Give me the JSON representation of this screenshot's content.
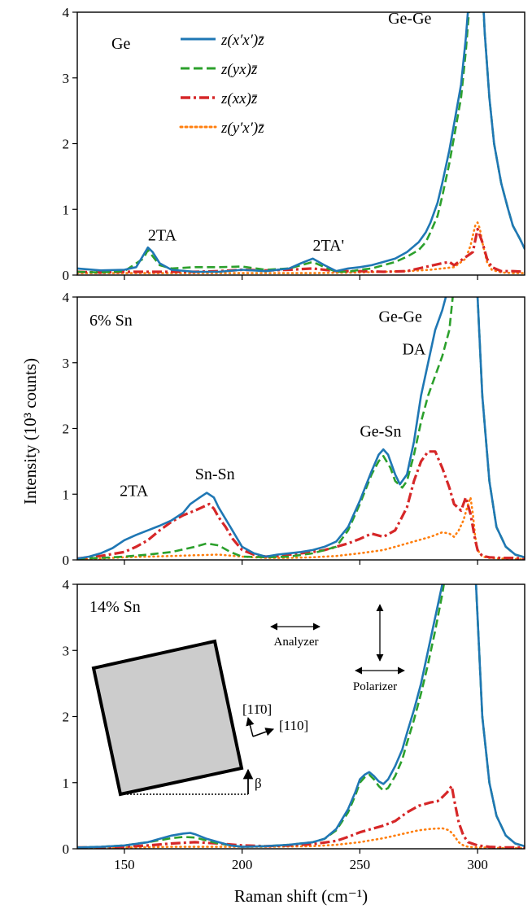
{
  "colors": {
    "x_prime_x_prime": "#1f77b4",
    "yx": "#2ca02c",
    "xx": "#d62728",
    "y_prime_x_prime": "#ff7f0e",
    "inset_square": "#cccccc"
  },
  "shared": {
    "xlabel": "Raman shift (cm⁻¹)",
    "ylabel": "Intensity (10³ counts)",
    "xlim": [
      130,
      320
    ],
    "ylim": [
      0,
      4
    ],
    "x_ticks": [
      150,
      200,
      250,
      300
    ],
    "y_ticks": [
      0,
      1,
      2,
      3,
      4
    ]
  },
  "legend": {
    "placement": "top-center of top panel",
    "entries": [
      {
        "key": "x_prime_x_prime",
        "label": "z(x′x′)z̄",
        "style": "solid"
      },
      {
        "key": "yx",
        "label": "z(yx)z̄",
        "style": "dashed"
      },
      {
        "key": "xx",
        "label": "z(xx)z̄",
        "style": "dashdot"
      },
      {
        "key": "y_prime_x_prime",
        "label": "z(y′x′)z̄",
        "style": "dotted"
      }
    ]
  },
  "inset": {
    "analyzer_label": "Analyzer",
    "polarizer_label": "Polarizer",
    "dir_1_label": "[11̄0]",
    "dir_2_label": "[110]",
    "angle_label": "β"
  },
  "chart_data": [
    {
      "type": "line",
      "panel_label": "Ge",
      "annotations": [
        {
          "text": "2TA",
          "x": 160,
          "y": 0.45
        },
        {
          "text": "2TA'",
          "x": 230,
          "y": 0.3
        },
        {
          "text": "Ge-Ge",
          "x": 262,
          "y": 3.75
        }
      ],
      "series": [
        {
          "key": "x_prime_x_prime",
          "x": [
            130,
            140,
            150,
            155,
            158,
            160,
            162,
            165,
            170,
            180,
            190,
            200,
            210,
            220,
            225,
            230,
            235,
            240,
            245,
            250,
            255,
            260,
            265,
            270,
            275,
            278,
            280,
            283,
            285,
            288,
            290,
            293,
            295,
            297,
            298,
            299,
            300,
            301,
            302,
            303,
            305,
            307,
            310,
            313,
            315,
            318,
            320
          ],
          "y": [
            0.1,
            0.07,
            0.08,
            0.12,
            0.3,
            0.42,
            0.35,
            0.18,
            0.08,
            0.05,
            0.05,
            0.08,
            0.06,
            0.1,
            0.18,
            0.25,
            0.15,
            0.06,
            0.1,
            0.12,
            0.15,
            0.2,
            0.25,
            0.35,
            0.5,
            0.65,
            0.8,
            1.1,
            1.4,
            1.9,
            2.3,
            2.9,
            3.6,
            4.5,
            5.5,
            6.0,
            6.0,
            5.5,
            4.5,
            3.7,
            2.7,
            2.0,
            1.4,
            1.0,
            0.75,
            0.55,
            0.4
          ]
        },
        {
          "key": "yx",
          "x": [
            130,
            140,
            150,
            158,
            160,
            165,
            170,
            180,
            190,
            200,
            210,
            220,
            225,
            230,
            235,
            240,
            245,
            250,
            255,
            260,
            265,
            270,
            275,
            278,
            280,
            283,
            285,
            288,
            290,
            293,
            295,
            297,
            298,
            299,
            300,
            301,
            302,
            303,
            305,
            307,
            310,
            313,
            315,
            318,
            320
          ],
          "y": [
            0.05,
            0.04,
            0.06,
            0.25,
            0.38,
            0.15,
            0.1,
            0.12,
            0.12,
            0.13,
            0.08,
            0.1,
            0.15,
            0.2,
            0.12,
            0.05,
            0.05,
            0.08,
            0.1,
            0.15,
            0.2,
            0.28,
            0.38,
            0.5,
            0.65,
            0.9,
            1.2,
            1.7,
            2.1,
            2.7,
            3.4,
            4.3,
            5.2,
            6.0,
            6.0,
            5.4,
            4.4,
            3.7,
            2.7,
            2.0,
            1.4,
            1.0,
            0.75,
            0.55,
            0.4
          ]
        },
        {
          "key": "xx",
          "x": [
            130,
            140,
            150,
            160,
            170,
            180,
            190,
            200,
            210,
            220,
            230,
            240,
            250,
            260,
            270,
            275,
            280,
            285,
            288,
            290,
            292,
            294,
            296,
            298,
            300,
            302,
            304,
            306,
            310,
            315,
            320
          ],
          "y": [
            0.05,
            0.04,
            0.05,
            0.05,
            0.05,
            0.05,
            0.06,
            0.08,
            0.07,
            0.08,
            0.1,
            0.06,
            0.06,
            0.05,
            0.06,
            0.1,
            0.14,
            0.18,
            0.2,
            0.15,
            0.2,
            0.25,
            0.3,
            0.35,
            0.7,
            0.5,
            0.25,
            0.12,
            0.06,
            0.06,
            0.05
          ]
        },
        {
          "key": "y_prime_x_prime",
          "x": [
            130,
            150,
            170,
            190,
            210,
            230,
            250,
            260,
            270,
            280,
            290,
            295,
            297,
            298,
            299,
            300,
            301,
            302,
            304,
            306,
            310,
            315,
            320
          ],
          "y": [
            0.03,
            0.03,
            0.03,
            0.03,
            0.03,
            0.03,
            0.04,
            0.05,
            0.06,
            0.08,
            0.12,
            0.25,
            0.45,
            0.6,
            0.75,
            0.8,
            0.7,
            0.5,
            0.2,
            0.08,
            0.04,
            0.03,
            0.03
          ]
        }
      ]
    },
    {
      "type": "line",
      "panel_label": "6% Sn",
      "annotations": [
        {
          "text": "2TA",
          "x": 148,
          "y": 0.9
        },
        {
          "text": "Sn-Sn",
          "x": 180,
          "y": 1.15
        },
        {
          "text": "Ge-Sn",
          "x": 250,
          "y": 1.8
        },
        {
          "text": "DA",
          "x": 268,
          "y": 3.05
        },
        {
          "text": "Ge-Ge",
          "x": 258,
          "y": 3.55
        }
      ],
      "series": [
        {
          "key": "x_prime_x_prime",
          "x": [
            130,
            135,
            140,
            145,
            150,
            155,
            160,
            165,
            170,
            175,
            178,
            182,
            185,
            188,
            190,
            195,
            200,
            205,
            210,
            215,
            220,
            225,
            230,
            235,
            240,
            245,
            250,
            255,
            258,
            260,
            262,
            265,
            267,
            270,
            273,
            276,
            279,
            282,
            285,
            288,
            290,
            292,
            294,
            296,
            298,
            300,
            302,
            305,
            308,
            312,
            316,
            320
          ],
          "y": [
            0.02,
            0.05,
            0.1,
            0.18,
            0.3,
            0.38,
            0.45,
            0.52,
            0.6,
            0.72,
            0.85,
            0.95,
            1.02,
            0.95,
            0.8,
            0.5,
            0.2,
            0.1,
            0.05,
            0.08,
            0.1,
            0.12,
            0.15,
            0.2,
            0.28,
            0.5,
            0.9,
            1.35,
            1.6,
            1.68,
            1.6,
            1.3,
            1.15,
            1.3,
            1.8,
            2.5,
            3.0,
            3.5,
            3.8,
            4.2,
            5.0,
            6.0,
            6.0,
            6.0,
            5.0,
            4.0,
            2.5,
            1.2,
            0.5,
            0.2,
            0.08,
            0.04
          ]
        },
        {
          "key": "yx",
          "x": [
            130,
            140,
            150,
            160,
            170,
            175,
            180,
            185,
            190,
            195,
            200,
            210,
            220,
            230,
            240,
            245,
            250,
            255,
            258,
            260,
            263,
            265,
            268,
            270,
            273,
            276,
            279,
            282,
            285,
            288,
            290,
            292,
            294,
            296,
            298,
            300,
            302,
            305,
            308,
            312,
            316,
            320
          ],
          "y": [
            0.02,
            0.03,
            0.05,
            0.08,
            0.12,
            0.16,
            0.2,
            0.25,
            0.22,
            0.12,
            0.05,
            0.04,
            0.05,
            0.1,
            0.2,
            0.45,
            0.85,
            1.3,
            1.5,
            1.58,
            1.4,
            1.2,
            1.1,
            1.2,
            1.6,
            2.1,
            2.5,
            2.8,
            3.1,
            3.5,
            4.2,
            5.5,
            6.0,
            6.0,
            5.5,
            4.0,
            2.5,
            1.2,
            0.5,
            0.2,
            0.08,
            0.04
          ]
        },
        {
          "key": "xx",
          "x": [
            130,
            140,
            150,
            155,
            160,
            165,
            170,
            175,
            180,
            183,
            186,
            188,
            190,
            193,
            196,
            200,
            205,
            210,
            215,
            220,
            225,
            230,
            235,
            240,
            245,
            250,
            255,
            260,
            265,
            270,
            273,
            276,
            279,
            282,
            285,
            288,
            290,
            293,
            295,
            297,
            299,
            300,
            302,
            305,
            310,
            315,
            320
          ],
          "y": [
            0.02,
            0.06,
            0.12,
            0.2,
            0.3,
            0.45,
            0.58,
            0.68,
            0.75,
            0.8,
            0.85,
            0.78,
            0.65,
            0.5,
            0.32,
            0.15,
            0.08,
            0.05,
            0.06,
            0.08,
            0.1,
            0.12,
            0.15,
            0.2,
            0.25,
            0.32,
            0.4,
            0.35,
            0.45,
            0.8,
            1.2,
            1.5,
            1.65,
            1.65,
            1.4,
            1.1,
            0.85,
            0.75,
            0.95,
            0.7,
            0.3,
            0.15,
            0.06,
            0.04,
            0.03,
            0.03,
            0.02
          ]
        },
        {
          "key": "y_prime_x_prime",
          "x": [
            130,
            140,
            150,
            160,
            170,
            180,
            190,
            200,
            210,
            220,
            230,
            240,
            250,
            260,
            265,
            270,
            275,
            280,
            285,
            288,
            290,
            292,
            294,
            296,
            297,
            298,
            299,
            300,
            302,
            305,
            310,
            320
          ],
          "y": [
            0.01,
            0.02,
            0.04,
            0.05,
            0.06,
            0.07,
            0.08,
            0.05,
            0.03,
            0.03,
            0.04,
            0.06,
            0.1,
            0.15,
            0.2,
            0.25,
            0.3,
            0.35,
            0.42,
            0.4,
            0.35,
            0.45,
            0.6,
            0.85,
            0.95,
            0.7,
            0.35,
            0.15,
            0.05,
            0.03,
            0.02,
            0.01
          ]
        }
      ]
    },
    {
      "type": "line",
      "panel_label": "14% Sn",
      "annotations": [],
      "series": [
        {
          "key": "x_prime_x_prime",
          "x": [
            130,
            140,
            150,
            160,
            165,
            170,
            175,
            178,
            180,
            185,
            190,
            195,
            200,
            210,
            220,
            230,
            235,
            240,
            245,
            248,
            250,
            252,
            254,
            256,
            258,
            260,
            262,
            265,
            268,
            270,
            273,
            276,
            279,
            282,
            285,
            287,
            289,
            291,
            293,
            294,
            295,
            296,
            297,
            298,
            300,
            302,
            305,
            308,
            312,
            316,
            320
          ],
          "y": [
            0.02,
            0.03,
            0.05,
            0.1,
            0.15,
            0.2,
            0.23,
            0.24,
            0.22,
            0.15,
            0.1,
            0.05,
            0.03,
            0.04,
            0.06,
            0.1,
            0.15,
            0.3,
            0.6,
            0.85,
            1.05,
            1.12,
            1.16,
            1.1,
            1.02,
            0.98,
            1.05,
            1.25,
            1.5,
            1.75,
            2.1,
            2.5,
            3.0,
            3.5,
            4.0,
            4.5,
            5.5,
            6.0,
            6.0,
            6.0,
            6.0,
            6.0,
            6.0,
            5.5,
            3.5,
            2.0,
            1.0,
            0.5,
            0.2,
            0.08,
            0.04
          ]
        },
        {
          "key": "yx",
          "x": [
            130,
            140,
            150,
            160,
            170,
            175,
            180,
            190,
            200,
            210,
            220,
            230,
            235,
            240,
            245,
            248,
            250,
            252,
            254,
            256,
            258,
            260,
            262,
            265,
            268,
            270,
            273,
            276,
            279,
            282,
            285,
            287,
            289,
            291,
            293,
            294,
            295,
            296,
            297,
            298,
            300,
            302,
            305,
            308,
            312,
            316,
            320
          ],
          "y": [
            0.02,
            0.03,
            0.05,
            0.1,
            0.16,
            0.18,
            0.17,
            0.08,
            0.03,
            0.04,
            0.06,
            0.1,
            0.15,
            0.28,
            0.55,
            0.8,
            1.0,
            1.08,
            1.12,
            1.05,
            0.95,
            0.88,
            0.92,
            1.1,
            1.35,
            1.6,
            1.95,
            2.35,
            2.8,
            3.3,
            3.85,
            4.3,
            5.2,
            6.0,
            6.0,
            6.0,
            6.0,
            6.0,
            6.0,
            5.5,
            3.5,
            2.0,
            1.0,
            0.5,
            0.2,
            0.08,
            0.04
          ]
        },
        {
          "key": "xx",
          "x": [
            130,
            140,
            150,
            160,
            170,
            180,
            190,
            200,
            210,
            220,
            230,
            240,
            245,
            250,
            255,
            260,
            265,
            270,
            275,
            280,
            283,
            285,
            287,
            289,
            290,
            292,
            294,
            296,
            300,
            305,
            310,
            320
          ],
          "y": [
            0.02,
            0.02,
            0.03,
            0.05,
            0.08,
            0.1,
            0.08,
            0.05,
            0.04,
            0.05,
            0.07,
            0.12,
            0.18,
            0.25,
            0.3,
            0.35,
            0.42,
            0.55,
            0.65,
            0.7,
            0.72,
            0.78,
            0.85,
            0.95,
            0.75,
            0.4,
            0.2,
            0.1,
            0.05,
            0.03,
            0.02,
            0.02
          ]
        },
        {
          "key": "y_prime_x_prime",
          "x": [
            130,
            150,
            170,
            190,
            210,
            230,
            240,
            250,
            255,
            260,
            265,
            270,
            275,
            280,
            285,
            288,
            290,
            292,
            294,
            296,
            300,
            305,
            310,
            320
          ],
          "y": [
            0.01,
            0.02,
            0.03,
            0.03,
            0.03,
            0.04,
            0.06,
            0.1,
            0.13,
            0.16,
            0.2,
            0.24,
            0.28,
            0.3,
            0.31,
            0.28,
            0.2,
            0.1,
            0.05,
            0.03,
            0.02,
            0.02,
            0.01,
            0.01
          ]
        }
      ]
    }
  ]
}
